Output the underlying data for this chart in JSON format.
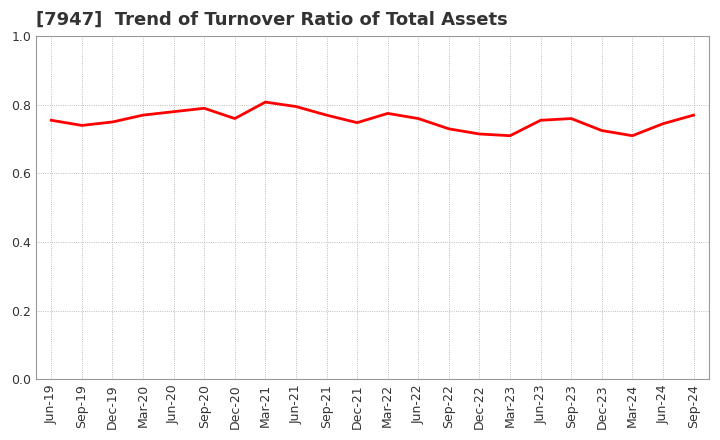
{
  "title": "[7947]  Trend of Turnover Ratio of Total Assets",
  "labels": [
    "Jun-19",
    "Sep-19",
    "Dec-19",
    "Mar-20",
    "Jun-20",
    "Sep-20",
    "Dec-20",
    "Mar-21",
    "Jun-21",
    "Sep-21",
    "Dec-21",
    "Mar-22",
    "Jun-22",
    "Sep-22",
    "Dec-22",
    "Mar-23",
    "Jun-23",
    "Sep-23",
    "Dec-23",
    "Mar-24",
    "Jun-24",
    "Sep-24"
  ],
  "values": [
    0.755,
    0.74,
    0.75,
    0.77,
    0.78,
    0.79,
    0.76,
    0.808,
    0.795,
    0.77,
    0.748,
    0.775,
    0.76,
    0.73,
    0.715,
    0.71,
    0.755,
    0.76,
    0.725,
    0.71,
    0.745,
    0.77
  ],
  "line_color": "#ff0000",
  "line_width": 2.0,
  "ylim": [
    0.0,
    1.0
  ],
  "yticks": [
    0.0,
    0.2,
    0.4,
    0.6,
    0.8,
    1.0
  ],
  "background_color": "#ffffff",
  "grid_color": "#aaaaaa",
  "title_fontsize": 13,
  "tick_fontsize": 9,
  "title_color": "#333333"
}
